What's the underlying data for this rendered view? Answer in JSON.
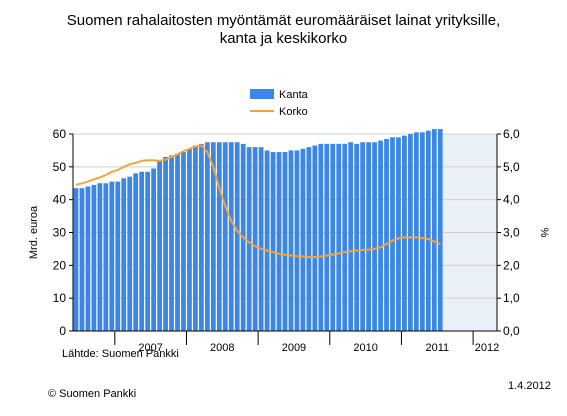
{
  "title_line1": "Suomen rahalaitosten myöntämät euromääräiset lainat yrityksille,",
  "title_line2": "kanta ja keskikorko",
  "source": "Lähtde: Suomen Pankki",
  "copyright": "© Suomen Pankki",
  "date": "1.4.2012",
  "chart_data": {
    "type": "bar",
    "title": "Suomen rahalaitosten myöntämät euromääräiset lainat yrityksille, kanta ja keskikorko",
    "ylabel": "Mrd. euroa",
    "y2label": "%",
    "ylim": [
      0,
      60
    ],
    "y2lim": [
      0,
      6
    ],
    "yticks": [
      "0",
      "10",
      "20",
      "30",
      "40",
      "50",
      "60"
    ],
    "y2ticks": [
      "0,0",
      "1,0",
      "2,0",
      "3,0",
      "4,0",
      "5,0",
      "6,0"
    ],
    "xticks": [
      "2007",
      "2008",
      "2009",
      "2010",
      "2011",
      "2012"
    ],
    "x_start": "2006-06",
    "legend_position": "top",
    "colors": {
      "bar": "#3c87e6",
      "line": "#f4a43c",
      "grid": "#cfcfcf"
    },
    "series": [
      {
        "name": "Kanta",
        "type": "bar",
        "axis": "left",
        "values": [
          43.5,
          43.5,
          44,
          44.5,
          45,
          45,
          45.5,
          45.5,
          46.5,
          47,
          48,
          48.5,
          48.5,
          49.5,
          52,
          53,
          53.5,
          54,
          54.5,
          55.5,
          56.5,
          57,
          57.5,
          57.5,
          57.5,
          57.5,
          57.5,
          57.5,
          57,
          56,
          56,
          56,
          55,
          54.5,
          54.5,
          54.5,
          55,
          55,
          55.5,
          56,
          56.5,
          57,
          57,
          57,
          57,
          57,
          57.5,
          57,
          57.5,
          57.5,
          57.5,
          58,
          58.5,
          59,
          59,
          59.5,
          60,
          60.5,
          60.5,
          61,
          61.5,
          61.5
        ]
      },
      {
        "name": "Korko",
        "type": "line",
        "axis": "right",
        "values": [
          4.45,
          4.5,
          4.55,
          4.62,
          4.68,
          4.75,
          4.85,
          4.9,
          5.0,
          5.08,
          5.12,
          5.18,
          5.2,
          5.2,
          5.18,
          5.22,
          5.3,
          5.38,
          5.48,
          5.55,
          5.62,
          5.65,
          5.45,
          5.0,
          4.35,
          3.8,
          3.35,
          3.05,
          2.85,
          2.7,
          2.58,
          2.5,
          2.45,
          2.4,
          2.35,
          2.32,
          2.3,
          2.28,
          2.27,
          2.25,
          2.25,
          2.27,
          2.3,
          2.33,
          2.36,
          2.4,
          2.43,
          2.45,
          2.47,
          2.48,
          2.5,
          2.55,
          2.65,
          2.75,
          2.82,
          2.85,
          2.85,
          2.85,
          2.83,
          2.8,
          2.72,
          2.65
        ]
      }
    ]
  }
}
